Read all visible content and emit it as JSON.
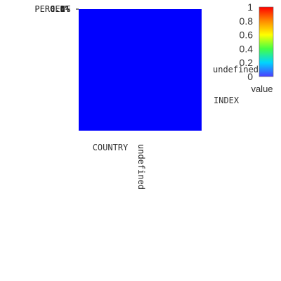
{
  "chart_data": {
    "type": "heatmap",
    "x_categories": [
      "undefined"
    ],
    "y_categories": [
      "undefined"
    ],
    "values": [
      [
        0
      ]
    ],
    "xlabel": "COUNTRY",
    "ylabel": "INDEX",
    "y_tick_text_overlapped": [
      "PERCENT",
      "0.1%",
      "0.0%"
    ],
    "colorscale": {
      "title": "value",
      "range": [
        0,
        1
      ],
      "ticks": [
        "1",
        "0.8",
        "0.6",
        "0.4",
        "0.2",
        "0"
      ],
      "stops": [
        "#4b3cff",
        "#00d4ff",
        "#44ff44",
        "#ffff00",
        "#ff8a00",
        "#ff0000"
      ]
    },
    "cell_color": "#0000ff"
  }
}
